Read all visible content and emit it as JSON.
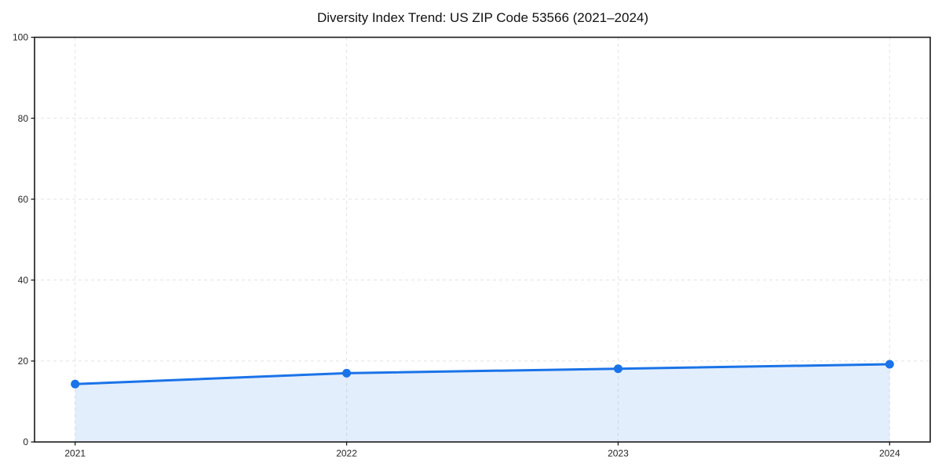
{
  "chart_data": {
    "type": "area",
    "title": "Diversity Index Trend: US ZIP Code 53566 (2021–2024)",
    "categories": [
      "2021",
      "2022",
      "2023",
      "2024"
    ],
    "series": [
      {
        "name": "Diversity Index",
        "values": [
          14.3,
          17.0,
          18.1,
          19.2
        ]
      }
    ],
    "xlabel": "",
    "ylabel": "",
    "ylim": [
      0,
      100
    ],
    "yticks": [
      0,
      20,
      40,
      60,
      80,
      100
    ],
    "grid": true,
    "grid_style": "dashed",
    "legend": false,
    "frame": "full-box",
    "colors": {
      "line": "#1a73e8",
      "marker": "#1a73e8",
      "fill": "rgba(26,115,232,0.12)",
      "grid": "#e2e2e2",
      "axis": "#1a1a1a",
      "tick_text": "#262626",
      "title_text": "#111111",
      "background": "#ffffff"
    }
  }
}
